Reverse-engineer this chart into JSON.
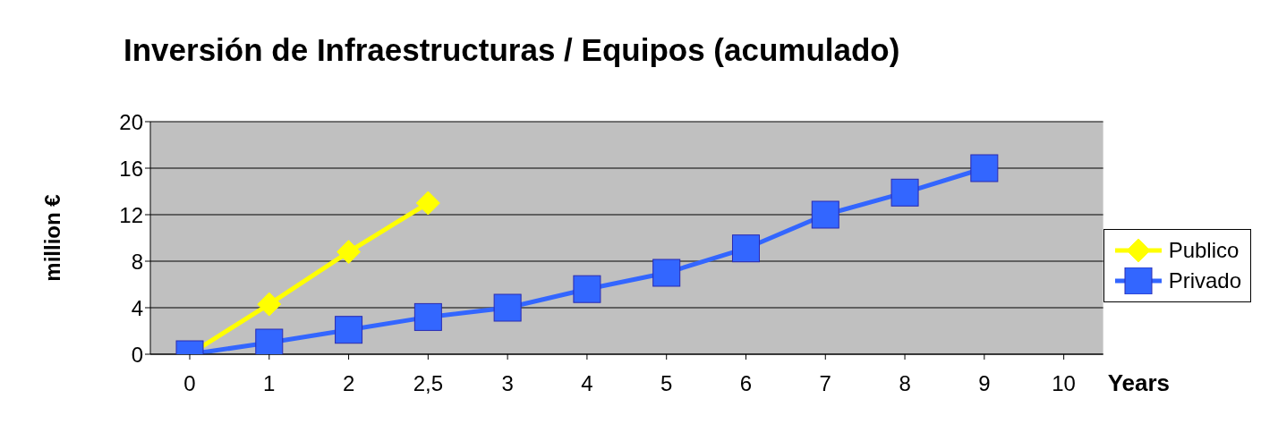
{
  "chart_data": {
    "type": "line",
    "title": "Inversión de Infraestructuras / Equipos (acumulado)",
    "xlabel": "Years",
    "ylabel": "million €",
    "categories": [
      "0",
      "1",
      "2",
      "2,5",
      "3",
      "4",
      "5",
      "6",
      "7",
      "8",
      "9",
      "10"
    ],
    "series": [
      {
        "name": "Publico",
        "color": "#ffff00",
        "marker": "diamond",
        "values": [
          0,
          4.3,
          8.8,
          13,
          null,
          null,
          null,
          null,
          null,
          null,
          null,
          null
        ]
      },
      {
        "name": "Privado",
        "color": "#3366ff",
        "marker": "square",
        "values": [
          0,
          1,
          2.1,
          3.2,
          4,
          5.6,
          7,
          9.1,
          12,
          13.9,
          16,
          null
        ]
      }
    ],
    "ylim": [
      0,
      20
    ],
    "yticks": [
      0,
      4,
      8,
      12,
      16,
      20
    ],
    "grid": "y",
    "legend": "right",
    "line_style": "solid"
  }
}
